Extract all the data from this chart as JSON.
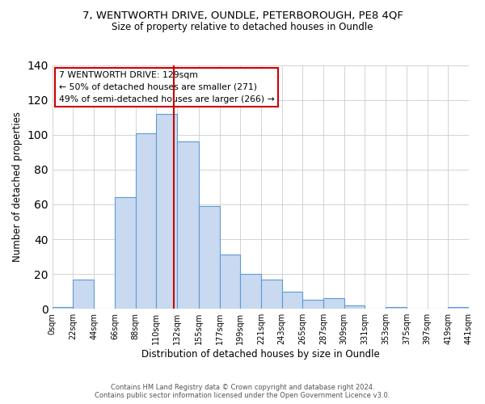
{
  "title": "7, WENTWORTH DRIVE, OUNDLE, PETERBOROUGH, PE8 4QF",
  "subtitle": "Size of property relative to detached houses in Oundle",
  "xlabel": "Distribution of detached houses by size in Oundle",
  "ylabel": "Number of detached properties",
  "bin_edges": [
    0,
    22,
    44,
    66,
    88,
    110,
    132,
    155,
    177,
    199,
    221,
    243,
    265,
    287,
    309,
    331,
    353,
    375,
    397,
    419,
    441
  ],
  "bar_heights": [
    1,
    17,
    0,
    64,
    101,
    112,
    96,
    59,
    31,
    20,
    17,
    10,
    5,
    6,
    2,
    0,
    1,
    0,
    0,
    1
  ],
  "tick_labels": [
    "0sqm",
    "22sqm",
    "44sqm",
    "66sqm",
    "88sqm",
    "110sqm",
    "132sqm",
    "155sqm",
    "177sqm",
    "199sqm",
    "221sqm",
    "243sqm",
    "265sqm",
    "287sqm",
    "309sqm",
    "331sqm",
    "353sqm",
    "375sqm",
    "397sqm",
    "419sqm",
    "441sqm"
  ],
  "bar_color": "#c9d9f0",
  "bar_edge_color": "#5b9bd5",
  "vline_x": 129,
  "vline_color": "#cc0000",
  "ylim": [
    0,
    140
  ],
  "yticks": [
    0,
    20,
    40,
    60,
    80,
    100,
    120,
    140
  ],
  "annotation_title": "7 WENTWORTH DRIVE: 129sqm",
  "annotation_line1": "← 50% of detached houses are smaller (271)",
  "annotation_line2": "49% of semi-detached houses are larger (266) →",
  "annotation_box_color": "#ffffff",
  "annotation_box_edge": "#cc0000",
  "grid_color": "#cccccc",
  "background_color": "#ffffff",
  "footer_line1": "Contains HM Land Registry data © Crown copyright and database right 2024.",
  "footer_line2": "Contains public sector information licensed under the Open Government Licence v3.0."
}
